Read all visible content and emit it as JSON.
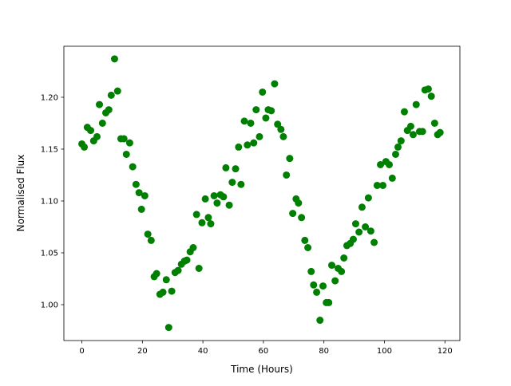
{
  "chart_data": {
    "type": "scatter",
    "xlabel": "Time (Hours)",
    "ylabel": "Normalised Flux",
    "color": "green",
    "x": [
      0,
      0.8,
      1.8,
      2.9,
      3.9,
      5,
      5.8,
      6.8,
      7.9,
      8.9,
      9.7,
      10.8,
      11.8,
      12.9,
      13.9,
      14.7,
      15.8,
      16.8,
      17.9,
      18.9,
      19.7,
      20.8,
      21.8,
      22.9,
      23.9,
      24.7,
      25.8,
      26.8,
      27.9,
      28.7,
      29.7,
      30.8,
      31.8,
      32.9,
      33.9,
      34.7,
      35.8,
      36.8,
      37.9,
      38.7,
      39.7,
      40.8,
      41.8,
      42.6,
      43.7,
      44.7,
      45.8,
      46.8,
      47.6,
      48.7,
      49.7,
      50.8,
      51.8,
      52.6,
      53.7,
      54.7,
      55.8,
      56.8,
      57.6,
      58.7,
      59.7,
      60.8,
      61.6,
      62.6,
      63.7,
      64.7,
      65.8,
      66.6,
      67.6,
      68.7,
      69.7,
      70.8,
      71.6,
      72.6,
      73.7,
      74.7,
      75.8,
      76.6,
      77.6,
      78.7,
      79.7,
      80.8,
      81.6,
      82.6,
      83.7,
      84.7,
      85.8,
      86.6,
      87.6,
      88.7,
      89.7,
      90.5,
      91.6,
      92.6,
      93.7,
      94.7,
      95.5,
      96.6,
      97.6,
      98.7,
      99.5,
      100.5,
      101.6,
      102.6,
      103.7,
      104.5,
      105.5,
      106.6,
      107.6,
      108.7,
      109.5,
      110.5,
      111.6,
      112.6,
      113.4,
      114.5,
      115.5,
      116.6,
      117.6,
      118.4
    ],
    "values": [
      1.155,
      1.152,
      1.171,
      1.168,
      1.158,
      1.162,
      1.193,
      1.175,
      1.185,
      1.188,
      1.202,
      1.237,
      1.206,
      1.16,
      1.16,
      1.145,
      1.156,
      1.133,
      1.116,
      1.108,
      1.092,
      1.105,
      1.068,
      1.062,
      1.027,
      1.03,
      1.01,
      1.012,
      1.024,
      0.978,
      1.013,
      1.031,
      1.033,
      1.039,
      1.042,
      1.043,
      1.051,
      1.055,
      1.087,
      1.035,
      1.079,
      1.102,
      1.084,
      1.078,
      1.105,
      1.098,
      1.106,
      1.104,
      1.132,
      1.096,
      1.118,
      1.131,
      1.152,
      1.116,
      1.177,
      1.154,
      1.175,
      1.156,
      1.188,
      1.162,
      1.205,
      1.18,
      1.188,
      1.187,
      1.213,
      1.174,
      1.169,
      1.162,
      1.125,
      1.141,
      1.088,
      1.102,
      1.098,
      1.084,
      1.062,
      1.055,
      1.032,
      1.019,
      1.012,
      0.985,
      1.018,
      1.002,
      1.002,
      1.038,
      1.023,
      1.035,
      1.032,
      1.045,
      1.057,
      1.059,
      1.063,
      1.078,
      1.07,
      1.094,
      1.075,
      1.103,
      1.071,
      1.06,
      1.115,
      1.135,
      1.115,
      1.138,
      1.135,
      1.122,
      1.145,
      1.152,
      1.158,
      1.186,
      1.168,
      1.172,
      1.164,
      1.193,
      1.167,
      1.167,
      1.207,
      1.208,
      1.201,
      1.175,
      1.164,
      1.166
    ],
    "xlim": [
      -5.95,
      124.95
    ],
    "xticks": [
      0,
      20,
      40,
      60,
      80,
      100,
      120
    ],
    "ylim": [
      0.9654,
      1.2492
    ],
    "yticks": [
      {
        "value": 1.0,
        "label": "1.00"
      },
      {
        "value": 1.05,
        "label": "1.05"
      },
      {
        "value": 1.1,
        "label": "1.10"
      },
      {
        "value": 1.15,
        "label": "1.15"
      },
      {
        "value": 1.2,
        "label": "1.20"
      }
    ]
  }
}
